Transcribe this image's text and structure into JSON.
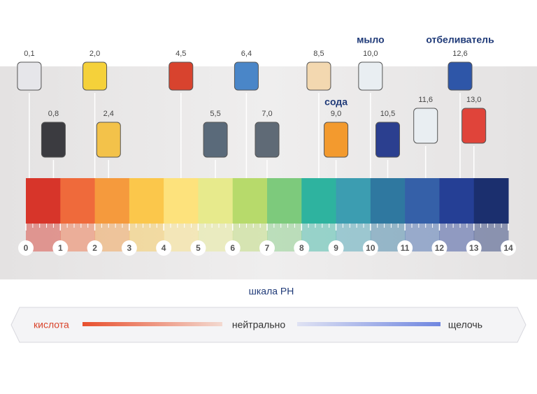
{
  "items": [
    {
      "value": 0.1,
      "label": "0,1"
    },
    {
      "value": 0.8,
      "label": "0,8"
    },
    {
      "value": 2.0,
      "label": "2,0"
    },
    {
      "value": 2.4,
      "label": "2,4"
    },
    {
      "value": 4.5,
      "label": "4,5"
    },
    {
      "value": 5.5,
      "label": "5,5"
    },
    {
      "value": 6.4,
      "label": "6,4"
    },
    {
      "value": 7.0,
      "label": "7,0"
    },
    {
      "value": 8.5,
      "label": "8,5"
    },
    {
      "value": 9.0,
      "label": "9,0"
    },
    {
      "value": 10.0,
      "label": "10,0"
    },
    {
      "value": 10.5,
      "label": "10,5"
    },
    {
      "value": 11.6,
      "label": "11,6"
    },
    {
      "value": 12.6,
      "label": "12,6"
    },
    {
      "value": 13.0,
      "label": "13,0"
    }
  ],
  "annotations": {
    "soap": "мыло",
    "bleach": "отбеливатель",
    "soda": "сода"
  },
  "scale": {
    "ticks": [
      0,
      1,
      2,
      3,
      4,
      5,
      6,
      7,
      8,
      9,
      10,
      11,
      12,
      13,
      14
    ],
    "title": "шкала РН"
  },
  "legend": {
    "acid": "кислота",
    "neutral": "нейтрально",
    "alkali": "щелочь"
  }
}
